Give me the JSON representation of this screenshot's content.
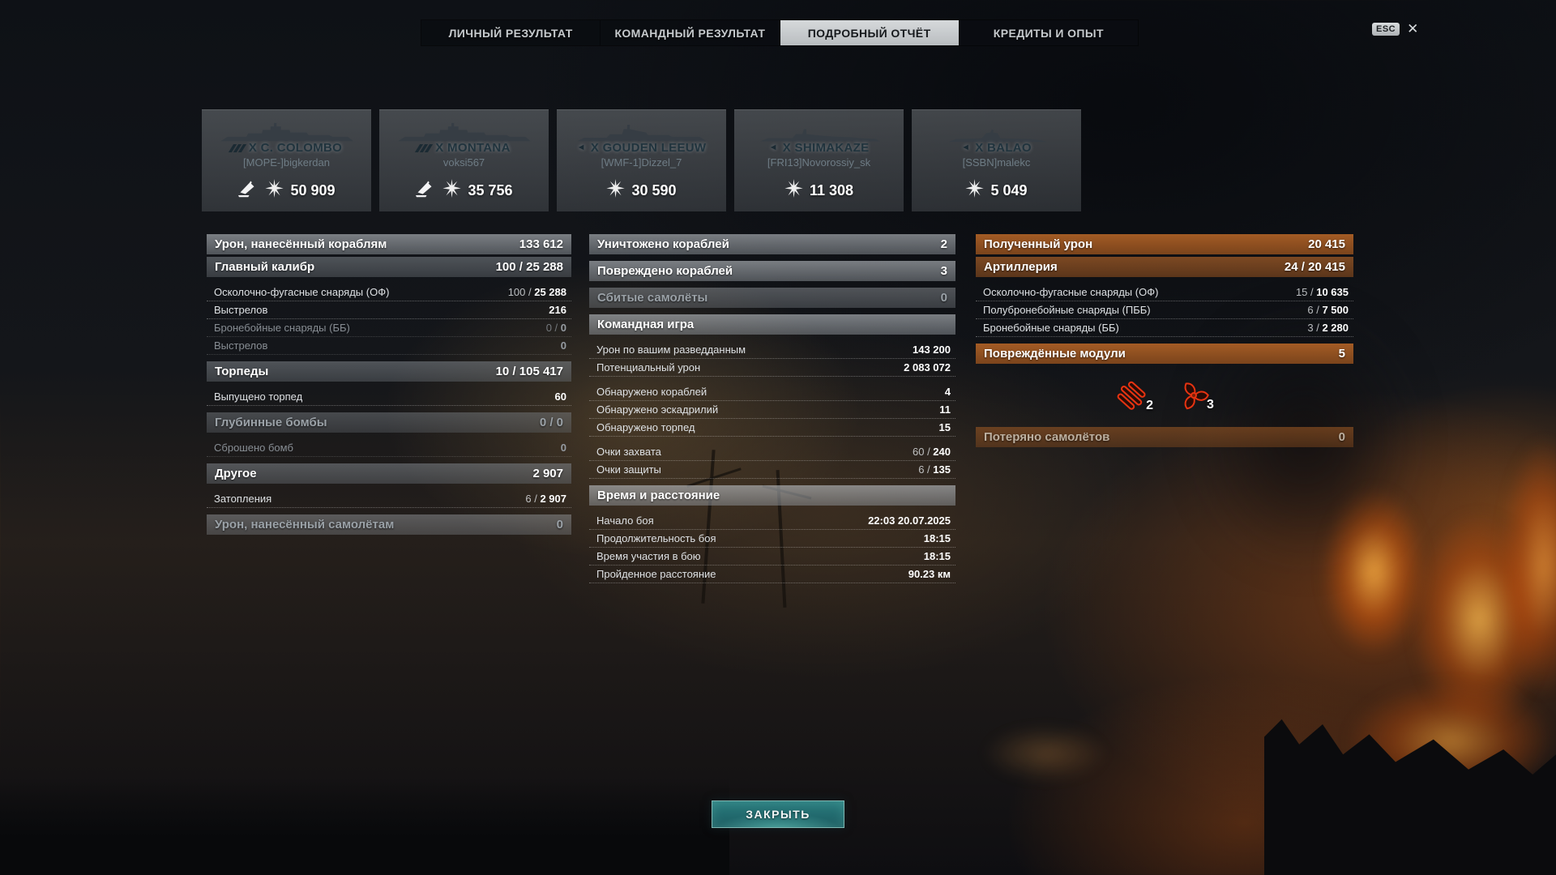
{
  "tabs": {
    "items": [
      {
        "id": "personal-result",
        "label": "ЛИЧНЫЙ РЕЗУЛЬТАТ",
        "active": false
      },
      {
        "id": "team-result",
        "label": "КОМАНДНЫЙ РЕЗУЛЬТАТ",
        "active": false
      },
      {
        "id": "detailed-report",
        "label": "ПОДРОБНЫЙ ОТЧЁТ",
        "active": true
      },
      {
        "id": "credits-xp",
        "label": "КРЕДИТЫ И ОПЫТ",
        "active": false
      }
    ]
  },
  "window": {
    "esc_label": "ESC",
    "close_icon": "✕"
  },
  "ships": [
    {
      "name": "X C. COLOMBO",
      "player": "[MOPE-]bigkerdan",
      "damage": "50 909",
      "marker": "destroyed",
      "silhouette": "battleship",
      "kill_icon": true
    },
    {
      "name": "X MONTANA",
      "player": "voksi567",
      "damage": "35 756",
      "marker": "destroyed",
      "silhouette": "battleship",
      "kill_icon": true
    },
    {
      "name": "X GOUDEN LEEUW",
      "player": "[WMF-1]Dizzel_7",
      "damage": "30 590",
      "marker": "ship",
      "silhouette": "cruiser",
      "kill_icon": false
    },
    {
      "name": "X SHIMAKAZE",
      "player": "[FRI13]Novorossiy_sk",
      "damage": "11 308",
      "marker": "ship",
      "silhouette": "destroyer",
      "kill_icon": false
    },
    {
      "name": "X BALAO",
      "player": "[SSBN]malekc",
      "damage": "5 049",
      "marker": "ship",
      "silhouette": "submarine",
      "kill_icon": false
    }
  ],
  "columns": {
    "left": {
      "groups": [
        [
          {
            "label": "Урон, нанесённый кораблям",
            "value": "133 612",
            "style": "header"
          },
          {
            "label": "Главный калибр",
            "value": "100 / 25 288",
            "style": "subheader"
          }
        ],
        [
          {
            "label": "Осколочно-фугасные снаряды (ОФ)",
            "value": "100 / 25 288",
            "style": "row"
          },
          {
            "label": "Выстрелов",
            "value": "216",
            "style": "row"
          },
          {
            "label": "Бронебойные снаряды (ББ)",
            "value": "0 / 0",
            "style": "row-muted"
          },
          {
            "label": "Выстрелов",
            "value": "0",
            "style": "row-muted"
          }
        ],
        [
          {
            "label": "Торпеды",
            "value": "10 / 105 417",
            "style": "subheader"
          }
        ],
        [
          {
            "label": "Выпущено торпед",
            "value": "60",
            "style": "row"
          }
        ],
        [
          {
            "label": "Глубинные бомбы",
            "value": "0 / 0",
            "style": "subheader-muted"
          }
        ],
        [
          {
            "label": "Сброшено бомб",
            "value": "0",
            "style": "row-muted"
          }
        ],
        [
          {
            "label": "Другое",
            "value": "2 907",
            "style": "subheader"
          }
        ],
        [
          {
            "label": "Затопления",
            "value": "6 / 2 907",
            "style": "row"
          }
        ],
        [
          {
            "label": "Урон, нанесённый самолётам",
            "value": "0",
            "style": "header-muted"
          }
        ]
      ]
    },
    "middle": {
      "groups": [
        [
          {
            "label": "Уничтожено кораблей",
            "value": "2",
            "style": "header"
          }
        ],
        [
          {
            "label": "Повреждено кораблей",
            "value": "3",
            "style": "header"
          }
        ],
        [
          {
            "label": "Сбитые самолёты",
            "value": "0",
            "style": "header-muted"
          }
        ],
        [
          {
            "label": "Командная игра",
            "style": "section"
          }
        ],
        [
          {
            "label": "Урон по вашим разведданным",
            "value": "143 200",
            "style": "row"
          },
          {
            "label": "Потенциальный урон",
            "value": "2 083 072",
            "style": "row"
          }
        ],
        [
          {
            "label": "Обнаружено кораблей",
            "value": "4",
            "style": "row"
          },
          {
            "label": "Обнаружено эскадрилий",
            "value": "11",
            "style": "row"
          },
          {
            "label": "Обнаружено торпед",
            "value": "15",
            "style": "row"
          }
        ],
        [
          {
            "label": "Очки захвата",
            "value": "60 / 240",
            "style": "row"
          },
          {
            "label": "Очки защиты",
            "value": "6 / 135",
            "style": "row"
          }
        ],
        [
          {
            "label": "Время и расстояние",
            "style": "section"
          }
        ],
        [
          {
            "label": "Начало боя",
            "value": "22:03 20.07.2025",
            "style": "row"
          },
          {
            "label": "Продолжительность боя",
            "value": "18:15",
            "style": "row"
          },
          {
            "label": "Время участия в бою",
            "value": "18:15",
            "style": "row"
          },
          {
            "label": "Пройденное расстояние",
            "value": "90.23 км",
            "style": "row"
          }
        ]
      ]
    },
    "right": {
      "groups_top": [
        [
          {
            "label": "Полученный урон",
            "value": "20 415",
            "style": "orange-header"
          },
          {
            "label": "Артиллерия",
            "value": "24 / 20 415",
            "style": "orange-subheader"
          }
        ],
        [
          {
            "label": "Осколочно-фугасные снаряды (ОФ)",
            "value": "15 / 10 635",
            "style": "row"
          },
          {
            "label": "Полубронебойные снаряды (ПББ)",
            "value": "6 / 7 500",
            "style": "row"
          },
          {
            "label": "Бронебойные снаряды (ББ)",
            "value": "3 / 2 280",
            "style": "row"
          }
        ],
        [
          {
            "label": "Повреждённые модули",
            "value": "5",
            "style": "orange-header"
          }
        ]
      ],
      "modules": [
        {
          "icon": "torpedo-tubes-icon",
          "count": "2"
        },
        {
          "icon": "propeller-icon",
          "count": "3"
        }
      ],
      "groups_bottom": [
        [
          {
            "label": "Потеряно самолётов",
            "value": "0",
            "style": "orange-header-muted"
          }
        ]
      ]
    }
  },
  "close_button": {
    "label": "ЗАКРЫТЬ"
  },
  "colors": {
    "accent_orange_header": "#9b5926",
    "teal_button": "#226a6e",
    "module_icon_red": "#e63311",
    "active_tab_bg": "#c9cdd0"
  }
}
